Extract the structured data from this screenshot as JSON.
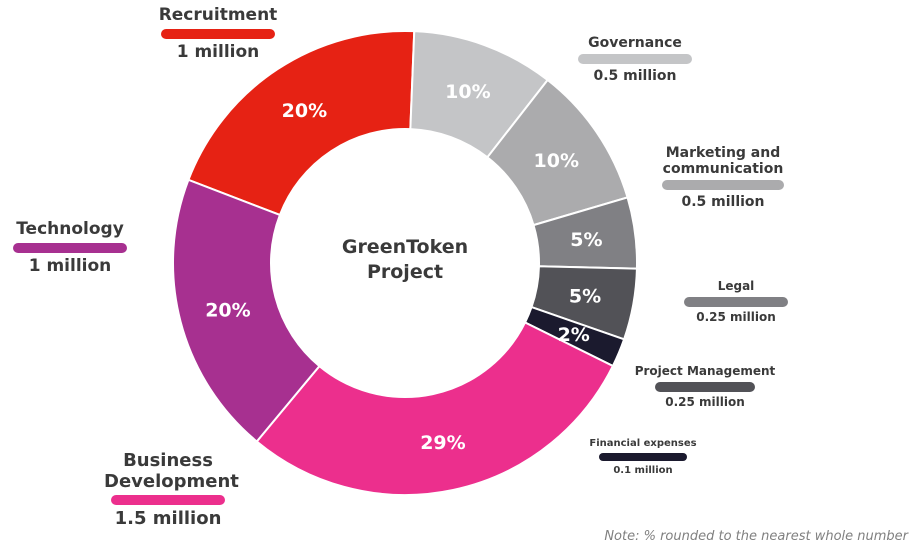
{
  "chart_data": {
    "type": "pie",
    "variant": "donut",
    "center_title": [
      "GreenToken",
      "Project"
    ],
    "slices": [
      {
        "name": "Recruitment",
        "pct_label": "20%",
        "value": 20,
        "amount": "1 million",
        "color": "#e62214"
      },
      {
        "name": "Governance",
        "pct_label": "10%",
        "value": 10,
        "amount": "0.5 million",
        "color": "#c4c5c7"
      },
      {
        "name": "Marketing and communication",
        "pct_label": "10%",
        "value": 10,
        "amount": "0.5 million",
        "color": "#ababad"
      },
      {
        "name": "Legal",
        "pct_label": "5%",
        "value": 5,
        "amount": "0.25 million",
        "color": "#808084"
      },
      {
        "name": "Project Management",
        "pct_label": "5%",
        "value": 5,
        "amount": "0.25 million",
        "color": "#525257"
      },
      {
        "name": "Financial expenses",
        "pct_label": "2%",
        "value": 2,
        "amount": "0.1 million",
        "color": "#1b1a2e"
      },
      {
        "name": "Business Development",
        "pct_label": "29%",
        "value": 29,
        "amount": "1.5 million",
        "color": "#ec2f8d"
      },
      {
        "name": "Technology",
        "pct_label": "20%",
        "value": 20,
        "amount": "1 million",
        "color": "#a73090"
      }
    ],
    "note": "Note: % rounded to the nearest whole number"
  }
}
